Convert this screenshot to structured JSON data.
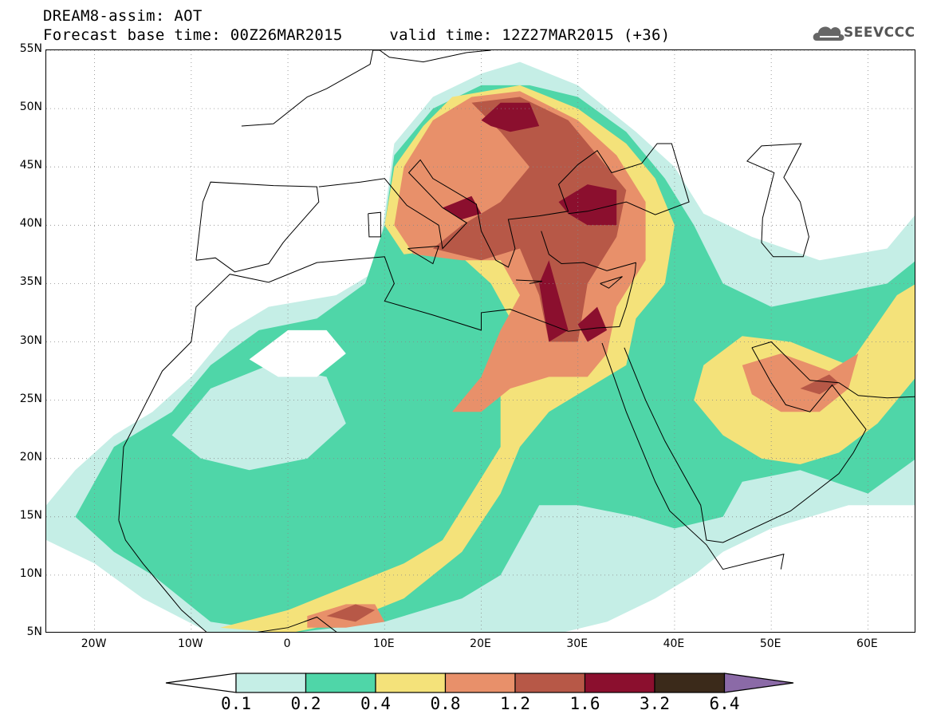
{
  "header": {
    "line1": "DREAM8-assim: AOT",
    "line2": "Forecast base time: 00Z26MAR2015     valid time: 12Z27MAR2015 (+36)",
    "logo_text": "SEEVCCC"
  },
  "map": {
    "lon_range": [
      -25,
      65
    ],
    "lat_range": [
      5,
      55
    ],
    "lat_ticks": [
      "55N",
      "50N",
      "45N",
      "40N",
      "35N",
      "30N",
      "25N",
      "20N",
      "15N",
      "10N",
      "5N"
    ],
    "lat_tick_values": [
      55,
      50,
      45,
      40,
      35,
      30,
      25,
      20,
      15,
      10,
      5
    ],
    "lon_ticks": [
      "20W",
      "10W",
      "0",
      "10E",
      "20E",
      "30E",
      "40E",
      "50E",
      "60E"
    ],
    "lon_tick_values": [
      -20,
      -10,
      0,
      10,
      20,
      30,
      40,
      50,
      60
    ],
    "field": "AOT",
    "colors": {
      "c1": "#c5eee6",
      "c2": "#4fd6a8",
      "c3": "#f4e27a",
      "c4": "#e8906a",
      "c5": "#b75847",
      "c6": "#8b0f2e",
      "c7": "#3b2a1a",
      "c8": "#8b6aa7",
      "coast": "#000000"
    }
  },
  "colorbar": {
    "labels": [
      "0.1",
      "0.2",
      "0.4",
      "0.8",
      "1.2",
      "1.6",
      "3.2",
      "6.4"
    ],
    "colors": [
      "#c5eee6",
      "#4fd6a8",
      "#f4e27a",
      "#e8906a",
      "#b75847",
      "#8b0f2e",
      "#3b2a1a"
    ],
    "below_color": "#ffffff",
    "above_color": "#8b6aa7"
  }
}
